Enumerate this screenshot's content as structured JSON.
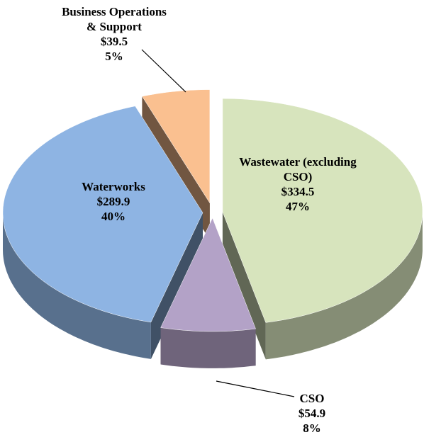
{
  "chart_data": {
    "type": "pie",
    "categories": [
      "Wastewater (excluding CSO)",
      "CSO",
      "Waterworks",
      "Business Operations & Support"
    ],
    "values": [
      334.5,
      54.9,
      289.9,
      39.5
    ],
    "value_labels": [
      "$334.5",
      "$54.9",
      "$289.9",
      "$39.5"
    ],
    "percent_labels": [
      "47%",
      "8%",
      "40%",
      "5%"
    ],
    "colors": [
      "#d7e4bd",
      "#b3a2c7",
      "#8eb4e3",
      "#fac090"
    ]
  }
}
